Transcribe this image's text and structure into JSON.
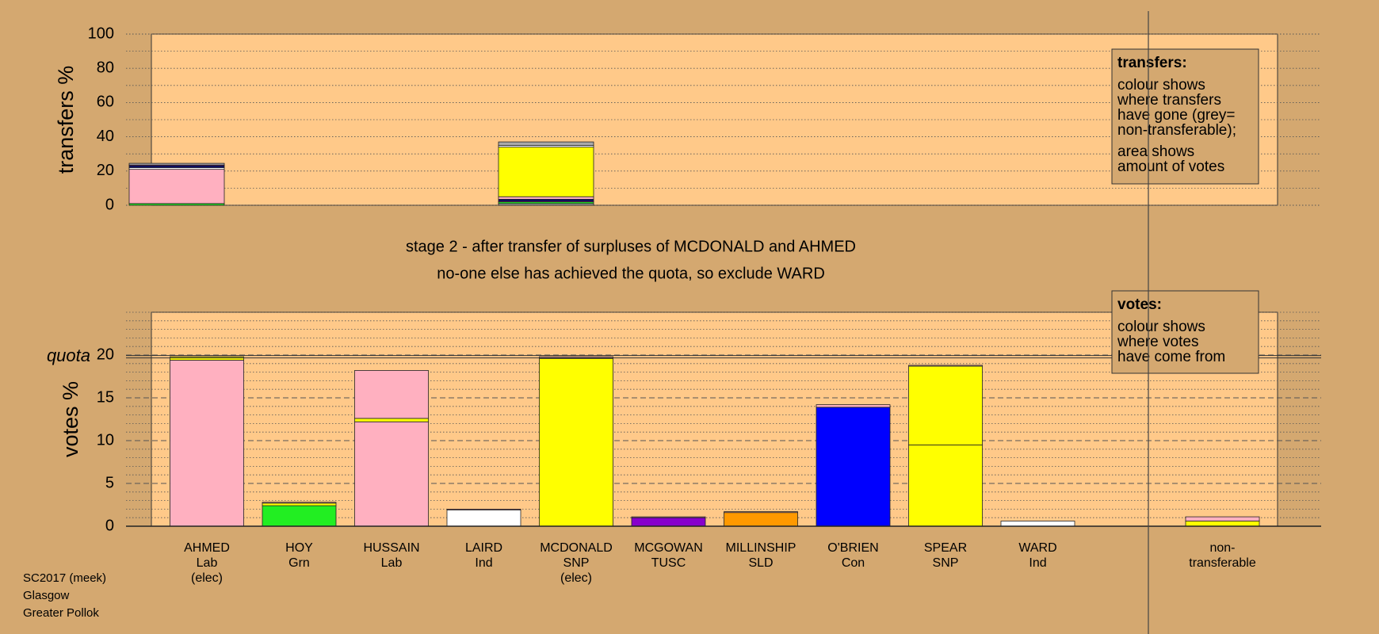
{
  "chart_data": [
    {
      "type": "stacked-bar",
      "ylabel": "transfers %",
      "ylim": [
        0,
        100
      ],
      "yticks": [
        0,
        20,
        40,
        60,
        80,
        100
      ],
      "minor_yticks": [
        10,
        30,
        50,
        70,
        90
      ],
      "major_grid": "dotted",
      "stacks": [
        [
          {
            "color": "#22ee22",
            "value": 1
          },
          {
            "color": "#ffb0c0",
            "value": 20
          },
          {
            "color": "#ffffff",
            "value": 1
          },
          {
            "color": "#000080",
            "value": 1
          },
          {
            "color": "#8800cc",
            "value": 0.5
          },
          {
            "color": "#aaaaaa",
            "value": 1
          }
        ],
        null,
        null,
        null,
        [
          {
            "color": "#aaaaaa",
            "value": 1
          },
          {
            "color": "#22ee22",
            "value": 1
          },
          {
            "color": "#8800cc",
            "value": 0.5
          },
          {
            "color": "#000080",
            "value": 1
          },
          {
            "color": "#ffb0c0",
            "value": 1.5
          },
          {
            "color": "#ffff00",
            "value": 29
          },
          {
            "color": "#ffffff",
            "value": 1
          },
          {
            "color": "#aaaaaa",
            "value": 2
          }
        ],
        null,
        null,
        null,
        null,
        null,
        null,
        null
      ],
      "legend": {
        "title": "transfers:",
        "paragraphs": [
          [
            "colour shows",
            "where transfers",
            "have gone (grey=",
            "non-transferable);"
          ],
          [
            "area shows",
            "amount of votes"
          ]
        ]
      }
    },
    {
      "type": "stacked-bar",
      "ylabel": "votes %",
      "ylim": [
        0,
        25
      ],
      "yticks": [
        0,
        5,
        10,
        15,
        20
      ],
      "minor_yticks": [
        1,
        2,
        3,
        4,
        6,
        7,
        8,
        9,
        11,
        12,
        13,
        14,
        16,
        17,
        18,
        19,
        21,
        22,
        23,
        24,
        25
      ],
      "major_grid": "dashed",
      "quota": {
        "label": "quota",
        "value": 19.8
      },
      "annotations": [
        "stage 2 - after transfer of surpluses of MCDONALD and AHMED",
        "no-one else has achieved the quota, so exclude WARD"
      ],
      "categories": [
        [
          "AHMED",
          "Lab",
          "(elec)"
        ],
        [
          "HOY",
          "Grn"
        ],
        [
          "HUSSAIN",
          "Lab"
        ],
        [
          "LAIRD",
          "Ind"
        ],
        [
          "MCDONALD",
          "SNP",
          "(elec)"
        ],
        [
          "MCGOWAN",
          "TUSC"
        ],
        [
          "MILLINSHIP",
          "SLD"
        ],
        [
          "O'BRIEN",
          "Con"
        ],
        [
          "SPEAR",
          "SNP"
        ],
        [
          "WARD",
          "Ind"
        ],
        null,
        [
          "non-",
          "transferable"
        ]
      ],
      "stacks": [
        [
          {
            "color": "#ffb0c0",
            "value": 19.4
          },
          {
            "color": "#ffff00",
            "value": 0.4
          }
        ],
        [
          {
            "color": "#22ee22",
            "value": 2.4
          },
          {
            "color": "#ffff00",
            "value": 0.3
          },
          {
            "color": "#ffb0c0",
            "value": 0.1
          }
        ],
        [
          {
            "color": "#ffb0c0",
            "value": 12.2
          },
          {
            "color": "#ffff00",
            "value": 0.4
          },
          {
            "color": "#ffb0c0",
            "value": 5.6
          }
        ],
        [
          {
            "color": "#ffffff",
            "value": 1.9
          },
          {
            "color": "#ffb0c0",
            "value": 0.1
          }
        ],
        [
          {
            "color": "#ffff00",
            "value": 19.6
          },
          {
            "color": "#ffb0c0",
            "value": 0.2
          }
        ],
        [
          {
            "color": "#8800cc",
            "value": 1.0
          },
          {
            "color": "#ffb0c0",
            "value": 0.1
          }
        ],
        [
          {
            "color": "#ff9900",
            "value": 1.6
          },
          {
            "color": "#ffb0c0",
            "value": 0.1
          }
        ],
        [
          {
            "color": "#0000ff",
            "value": 13.9
          },
          {
            "color": "#ffb0c0",
            "value": 0.3
          }
        ],
        [
          {
            "color": "#ffff00",
            "value": 9.5
          },
          {
            "color": "#ffff00",
            "value": 9.2
          },
          {
            "color": "#ffb0c0",
            "value": 0.1
          }
        ],
        [
          {
            "color": "#ffffff",
            "value": 0.6
          }
        ],
        null,
        [
          {
            "color": "#ffff00",
            "value": 0.6
          },
          {
            "color": "#ffb0c0",
            "value": 0.5
          }
        ]
      ],
      "legend": {
        "title": "votes:",
        "paragraphs": [
          [
            "colour shows",
            "where votes",
            "have come from"
          ]
        ]
      }
    },
    {
      "type": "footer",
      "lines": [
        "SC2017 (meek)",
        "Glasgow",
        "Greater Pollok"
      ]
    }
  ]
}
